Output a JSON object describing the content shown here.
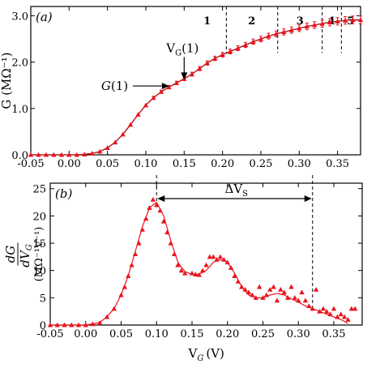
{
  "chart_data": [
    {
      "type": "line",
      "panel_label": "(a)",
      "ylabel": "G (MΩ⁻¹)",
      "xlim": [
        -0.05,
        0.38
      ],
      "ylim": [
        0,
        3.2
      ],
      "xticks": [
        "-0.05",
        "0.00",
        "0.05",
        "0.10",
        "0.15",
        "0.20",
        "0.25",
        "0.30",
        "0.35"
      ],
      "yticks": [
        "0.0",
        "1.0",
        "2.0",
        "3.0"
      ],
      "series": [
        {
          "name": "G",
          "x": [
            -0.05,
            -0.04,
            -0.03,
            -0.02,
            -0.01,
            0.0,
            0.01,
            0.02,
            0.03,
            0.04,
            0.05,
            0.06,
            0.07,
            0.08,
            0.09,
            0.1,
            0.11,
            0.12,
            0.13,
            0.14,
            0.15,
            0.16,
            0.17,
            0.18,
            0.19,
            0.2,
            0.21,
            0.22,
            0.23,
            0.24,
            0.25,
            0.26,
            0.27,
            0.28,
            0.29,
            0.3,
            0.31,
            0.32,
            0.33,
            0.34,
            0.35,
            0.36,
            0.37,
            0.38
          ],
          "y": [
            0.0,
            0.0,
            0.0,
            0.0,
            0.0,
            0.0,
            0.0,
            0.01,
            0.03,
            0.07,
            0.15,
            0.27,
            0.44,
            0.65,
            0.87,
            1.07,
            1.23,
            1.36,
            1.46,
            1.55,
            1.64,
            1.74,
            1.86,
            1.98,
            2.08,
            2.16,
            2.23,
            2.3,
            2.37,
            2.44,
            2.5,
            2.56,
            2.61,
            2.65,
            2.69,
            2.73,
            2.77,
            2.8,
            2.83,
            2.86,
            2.88,
            2.9,
            2.91,
            2.91
          ]
        }
      ],
      "region_lines_x": [
        0.205,
        0.272,
        0.33,
        0.355
      ],
      "regions": [
        {
          "label": "1",
          "x": 0.18
        },
        {
          "label": "2",
          "x": 0.238
        },
        {
          "label": "3",
          "x": 0.301
        },
        {
          "label": "4",
          "x": 0.342
        },
        {
          "label": "5",
          "x": 0.367
        }
      ],
      "annotations": [
        {
          "text": "V",
          "sub": "G",
          "tail": "(1)",
          "x": 0.15,
          "y": 1.55
        },
        {
          "text": "G(1)",
          "x": 0.12,
          "y": 1.45
        }
      ]
    },
    {
      "type": "line",
      "panel_label": "(b)",
      "xlabel_main": "V",
      "xlabel_sub": "G",
      "xlabel_tail": "(V)",
      "ylabel_frac_top": "dG",
      "ylabel_frac_bottom": "dV",
      "ylabel_frac_bottom_sub": "G",
      "ylabel_units": "(MΩ⁻¹V⁻¹)",
      "xlim": [
        -0.05,
        0.39
      ],
      "ylim": [
        0,
        26
      ],
      "xticks": [
        "-0.05",
        "0.00",
        "0.05",
        "0.10",
        "0.15",
        "0.20",
        "0.25",
        "0.30",
        "0.35"
      ],
      "yticks": [
        "0",
        "5",
        "10",
        "15",
        "20",
        "25"
      ],
      "bracket": {
        "label": "ΔV",
        "sub": "S",
        "x1": 0.1,
        "x2": 0.32
      },
      "series": [
        {
          "name": "dG/dVG",
          "x": [
            -0.05,
            -0.04,
            -0.03,
            -0.02,
            -0.01,
            0.0,
            0.01,
            0.02,
            0.03,
            0.04,
            0.05,
            0.06,
            0.07,
            0.08,
            0.09,
            0.1,
            0.11,
            0.12,
            0.13,
            0.14,
            0.15,
            0.16,
            0.17,
            0.18,
            0.19,
            0.2,
            0.21,
            0.22,
            0.23,
            0.24,
            0.25,
            0.26,
            0.27,
            0.28,
            0.29,
            0.3,
            0.31,
            0.32,
            0.33,
            0.34,
            0.35,
            0.36,
            0.37
          ],
          "y": [
            0,
            0,
            0,
            0,
            0,
            0,
            0.2,
            0.5,
            1.5,
            3,
            5.5,
            9,
            13.5,
            18,
            21.5,
            22.5,
            20,
            15.5,
            11.5,
            9.8,
            9.3,
            9.3,
            10,
            11.5,
            12,
            11.5,
            9.5,
            7,
            5.5,
            5,
            5,
            5.5,
            5.8,
            5.5,
            4.8,
            4.2,
            3.5,
            3,
            2.5,
            2,
            1.5,
            1,
            0.3
          ]
        }
      ],
      "markers": {
        "x": [
          -0.05,
          -0.04,
          -0.03,
          -0.02,
          -0.01,
          0.0,
          0.01,
          0.02,
          0.03,
          0.04,
          0.05,
          0.055,
          0.06,
          0.065,
          0.07,
          0.075,
          0.08,
          0.085,
          0.09,
          0.095,
          0.1,
          0.105,
          0.11,
          0.115,
          0.12,
          0.125,
          0.13,
          0.135,
          0.14,
          0.15,
          0.155,
          0.16,
          0.165,
          0.17,
          0.175,
          0.18,
          0.185,
          0.19,
          0.195,
          0.2,
          0.205,
          0.21,
          0.215,
          0.22,
          0.225,
          0.23,
          0.235,
          0.24,
          0.245,
          0.25,
          0.255,
          0.26,
          0.265,
          0.27,
          0.275,
          0.28,
          0.285,
          0.29,
          0.295,
          0.3,
          0.305,
          0.31,
          0.315,
          0.32,
          0.325,
          0.33,
          0.335,
          0.34,
          0.345,
          0.35,
          0.355,
          0.36,
          0.365,
          0.37,
          0.375,
          0.38
        ],
        "y": [
          0,
          0,
          0,
          0,
          0,
          0,
          0.2,
          0.4,
          1.5,
          3,
          5.5,
          7,
          9,
          11,
          13,
          15,
          17.5,
          19.5,
          21.5,
          23,
          22,
          21,
          19,
          17,
          15,
          13,
          11,
          10,
          9.5,
          9.5,
          9.3,
          9.2,
          10,
          11,
          12.5,
          12.5,
          12,
          12.5,
          12,
          11.5,
          10.5,
          9,
          8,
          7,
          6.5,
          6,
          5.5,
          5,
          7,
          5,
          5.5,
          6.5,
          7,
          4.5,
          6.5,
          6,
          5,
          7,
          5,
          4.5,
          6,
          4.5,
          3.5,
          3,
          6.5,
          2.5,
          3,
          2.5,
          2,
          3,
          1.5,
          2,
          1.5,
          1,
          3,
          3
        ]
      }
    }
  ]
}
